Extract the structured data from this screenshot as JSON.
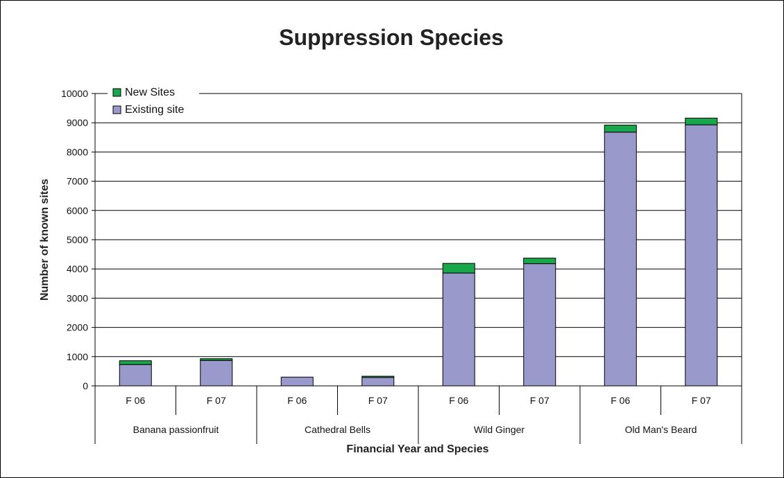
{
  "chart_data": {
    "type": "bar",
    "stacked": true,
    "title": "Suppression Species",
    "xlabel": "Financial Year and Species",
    "ylabel": "Number of known sites",
    "ylim": [
      0,
      10000
    ],
    "yticks": [
      0,
      1000,
      2000,
      3000,
      4000,
      5000,
      6000,
      7000,
      8000,
      9000,
      10000
    ],
    "grid": true,
    "legend_position": "top-left",
    "groups": [
      {
        "label": "Banana passionfruit",
        "categories": [
          "F 06",
          "F 07"
        ]
      },
      {
        "label": "Cathedral Bells",
        "categories": [
          "F 06",
          "F 07"
        ]
      },
      {
        "label": "Wild Ginger",
        "categories": [
          "F 06",
          "F 07"
        ]
      },
      {
        "label": "Old Man's Beard",
        "categories": [
          "F 06",
          "F 07"
        ]
      }
    ],
    "categories": [
      "F 06",
      "F 07",
      "F 06",
      "F 07",
      "F 06",
      "F 07",
      "F 06",
      "F 07"
    ],
    "series": [
      {
        "name": "Existing site",
        "color": "#9999cc",
        "values": [
          730,
          870,
          300,
          290,
          3860,
          4180,
          8680,
          8930
        ]
      },
      {
        "name": "New Sites",
        "color": "#1aa64a",
        "values": [
          130,
          60,
          0,
          40,
          330,
          190,
          240,
          230
        ]
      }
    ],
    "legend": [
      "New Sites",
      "Existing site"
    ]
  }
}
